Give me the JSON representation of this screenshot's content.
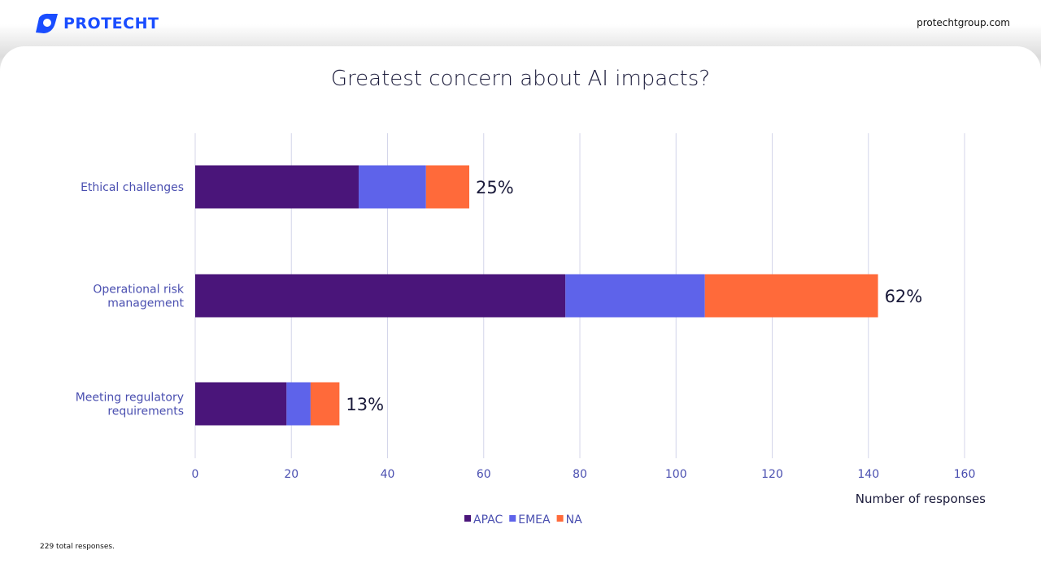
{
  "header": {
    "brand": "PROTECHT",
    "site": "protechtgroup.com",
    "brand_color": "#1a4dff"
  },
  "footnote": "229 total responses.",
  "chart_data": {
    "type": "bar",
    "orientation": "horizontal",
    "stacked": true,
    "title": "Greatest concern about AI impacts?",
    "xlabel": "Number of responses",
    "ylabel": "",
    "xlim": [
      0,
      160
    ],
    "xticks": [
      0,
      20,
      40,
      60,
      80,
      100,
      120,
      140,
      160
    ],
    "grid": true,
    "legend_position": "bottom",
    "categories": [
      [
        "Ethical challenges"
      ],
      [
        "Operational risk",
        "management"
      ],
      [
        "Meeting regulatory",
        "requirements"
      ]
    ],
    "series": [
      {
        "name": "APAC",
        "color": "#4a157a",
        "values": [
          34,
          77,
          19
        ]
      },
      {
        "name": "EMEA",
        "color": "#5e63ea",
        "values": [
          14,
          29,
          5
        ]
      },
      {
        "name": "NA",
        "color": "#ff6a3a",
        "values": [
          9,
          36,
          6
        ]
      }
    ],
    "data_labels": [
      "25%",
      "62%",
      "13%"
    ]
  }
}
